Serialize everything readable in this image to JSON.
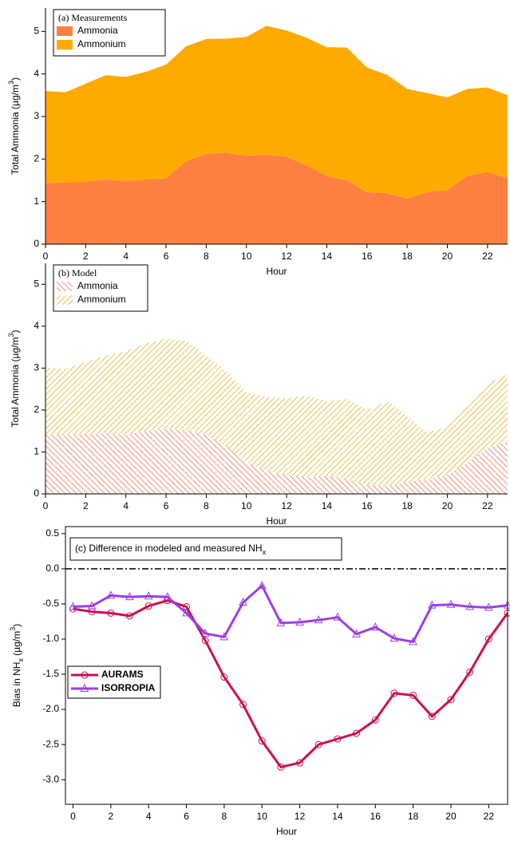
{
  "chart_data": [
    {
      "type": "area",
      "stacked": true,
      "hatched": false,
      "title": "(a) Measurements",
      "ylabel": [
        {
          "text": "Total Ammonia (µg/m"
        },
        {
          "text": "3",
          "script": "sup"
        },
        {
          "text": ")"
        }
      ],
      "xlabel": "Hour",
      "x": [
        0,
        1,
        2,
        3,
        4,
        5,
        6,
        7,
        8,
        9,
        10,
        11,
        12,
        13,
        14,
        15,
        16,
        17,
        18,
        19,
        20,
        21,
        22,
        23
      ],
      "series": [
        {
          "name": "Ammonia",
          "color": "#ff7f40",
          "values": [
            1.43,
            1.45,
            1.47,
            1.52,
            1.48,
            1.52,
            1.55,
            1.95,
            2.12,
            2.15,
            2.08,
            2.1,
            2.05,
            1.85,
            1.6,
            1.5,
            1.22,
            1.2,
            1.07,
            1.22,
            1.27,
            1.6,
            1.7,
            1.55
          ]
        },
        {
          "name": "Ammonium",
          "color": "#ffaa00",
          "values": [
            2.17,
            2.12,
            2.3,
            2.45,
            2.45,
            2.53,
            2.67,
            2.7,
            2.7,
            2.68,
            2.79,
            3.03,
            2.97,
            3.0,
            3.03,
            3.12,
            2.93,
            2.78,
            2.58,
            2.33,
            2.18,
            2.05,
            1.98,
            1.95
          ]
        }
      ],
      "xlim": [
        0,
        23
      ],
      "xticks": [
        0,
        2,
        4,
        6,
        8,
        10,
        12,
        14,
        16,
        18,
        20,
        22
      ],
      "ylim": [
        0,
        5.55
      ],
      "yticks": [
        0,
        1,
        2,
        3,
        4,
        5
      ],
      "legend": "upper left"
    },
    {
      "type": "area",
      "stacked": true,
      "hatched": true,
      "title": "(b) Model",
      "ylabel": [
        {
          "text": "Total Ammonia (µg/m"
        },
        {
          "text": "3",
          "script": "sup"
        },
        {
          "text": ")"
        }
      ],
      "xlabel": "Hour",
      "x": [
        0,
        1,
        2,
        3,
        4,
        5,
        6,
        7,
        8,
        9,
        10,
        11,
        12,
        13,
        14,
        15,
        16,
        17,
        18,
        19,
        20,
        21,
        22,
        23
      ],
      "series": [
        {
          "name": "Ammonia",
          "color": "#e8603c",
          "values": [
            1.4,
            1.4,
            1.43,
            1.45,
            1.4,
            1.5,
            1.55,
            1.52,
            1.4,
            1.15,
            0.75,
            0.55,
            0.45,
            0.4,
            0.43,
            0.35,
            0.22,
            0.18,
            0.28,
            0.35,
            0.45,
            0.75,
            1.1,
            1.25
          ]
        },
        {
          "name": "Ammonium",
          "color": "#e8a200",
          "values": [
            1.62,
            1.58,
            1.72,
            1.85,
            2.0,
            2.1,
            2.15,
            2.13,
            1.9,
            1.77,
            1.67,
            1.77,
            1.83,
            1.95,
            1.77,
            1.92,
            1.78,
            2.04,
            1.57,
            1.12,
            1.15,
            1.4,
            1.55,
            1.6
          ]
        }
      ],
      "xlim": [
        0,
        23
      ],
      "xticks": [
        0,
        2,
        4,
        6,
        8,
        10,
        12,
        14,
        16,
        18,
        20,
        22
      ],
      "ylim": [
        0,
        5.5
      ],
      "yticks": [
        0,
        1,
        2,
        3,
        4,
        5
      ],
      "legend": "upper left"
    },
    {
      "type": "line",
      "title": [
        {
          "text": "(c) Difference in modeled and measured NH"
        },
        {
          "text": "x",
          "script": "sub"
        }
      ],
      "ylabel": [
        {
          "text": "Bias in NH"
        },
        {
          "text": "x",
          "script": "sub"
        },
        {
          "text": " (µg/m"
        },
        {
          "text": "3",
          "script": "sup"
        },
        {
          "text": ")"
        }
      ],
      "xlabel": "Hour",
      "x": [
        0,
        1,
        2,
        3,
        4,
        5,
        6,
        7,
        8,
        9,
        10,
        11,
        12,
        13,
        14,
        15,
        16,
        17,
        18,
        19,
        20,
        21,
        22,
        23
      ],
      "series": [
        {
          "name": "AURAMS",
          "color": "#cc0f55",
          "marker": "circle",
          "values": [
            -0.57,
            -0.61,
            -0.63,
            -0.67,
            -0.53,
            -0.45,
            -0.54,
            -1.02,
            -1.54,
            -1.93,
            -2.45,
            -2.82,
            -2.76,
            -2.5,
            -2.42,
            -2.34,
            -2.15,
            -1.77,
            -1.8,
            -2.1,
            -1.86,
            -1.47,
            -1.0,
            -0.63
          ]
        },
        {
          "name": "ISORROPIA",
          "color": "#9b3ee8",
          "marker": "triangle",
          "values": [
            -0.54,
            -0.53,
            -0.38,
            -0.4,
            -0.39,
            -0.4,
            -0.63,
            -0.92,
            -0.97,
            -0.48,
            -0.24,
            -0.77,
            -0.76,
            -0.73,
            -0.69,
            -0.93,
            -0.83,
            -0.99,
            -1.04,
            -0.52,
            -0.51,
            -0.54,
            -0.55,
            -0.52
          ]
        }
      ],
      "hline": 0,
      "xlim": [
        -0.4,
        23
      ],
      "xticks": [
        0,
        2,
        4,
        6,
        8,
        10,
        12,
        14,
        16,
        18,
        20,
        22
      ],
      "ylim": [
        -3.35,
        0.6
      ],
      "yticks": [
        0.5,
        {
          "value": 0,
          "label": "0.0"
        },
        -0.5,
        {
          "value": -1,
          "label": "-1.0"
        },
        -1.5,
        {
          "value": -2,
          "label": "-2.0"
        },
        -2.5,
        {
          "value": -3,
          "label": "-3.0"
        }
      ],
      "legend": "center left"
    }
  ]
}
